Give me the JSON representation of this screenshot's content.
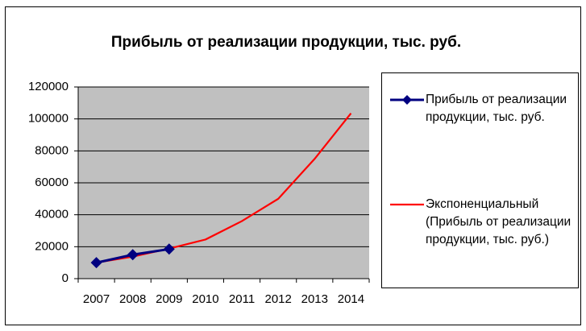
{
  "chart_data": {
    "type": "line",
    "title": "Прибыль от реализации продукции, тыс. руб.",
    "categories": [
      "2007",
      "2008",
      "2009",
      "2010",
      "2011",
      "2012",
      "2013",
      "2014"
    ],
    "series": [
      {
        "name": "Прибыль от реализации продукции, тыс. руб.",
        "color": "#000080",
        "marker": "diamond",
        "values": [
          10000,
          15000,
          18500,
          null,
          null,
          null,
          null,
          null
        ]
      },
      {
        "name": "Экспоненциальный (Прибыль от реализации продукции, тыс. руб.)",
        "color": "#ff0000",
        "values": [
          10000,
          13800,
          18800,
          24500,
          36000,
          50000,
          75000,
          103500
        ]
      }
    ],
    "ylim": [
      0,
      120000
    ],
    "yticks": [
      0,
      20000,
      40000,
      60000,
      80000,
      100000,
      120000
    ],
    "grid": true,
    "legend": "right"
  }
}
